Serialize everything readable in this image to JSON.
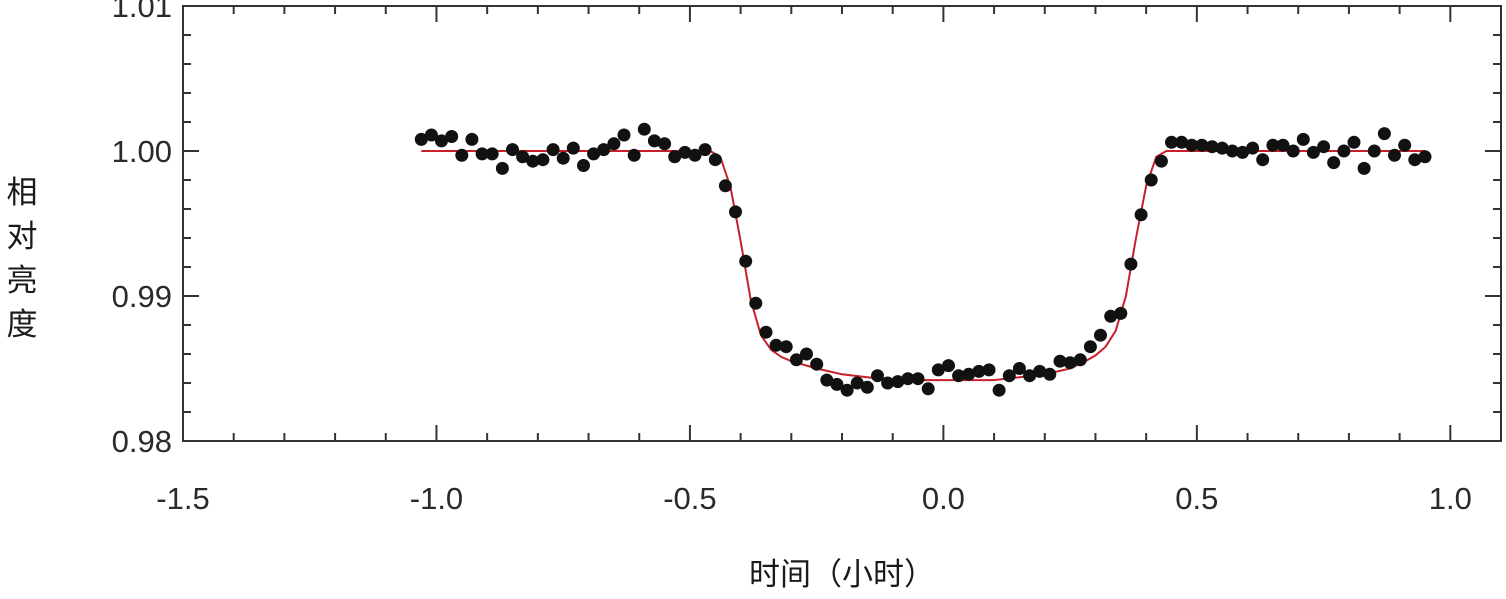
{
  "chart_data": {
    "type": "scatter",
    "xlabel": "时间（小时）",
    "ylabel": "相对亮度",
    "xlim": [
      -1.5,
      1.1
    ],
    "ylim": [
      0.98,
      1.01
    ],
    "x_ticks": [
      -1.5,
      -1.0,
      -0.5,
      0.0,
      0.5,
      1.0
    ],
    "x_tick_labels": [
      "-1.5",
      "-1.0",
      "-0.5",
      "0.0",
      "0.5",
      "1.0"
    ],
    "y_ticks": [
      0.98,
      0.99,
      1.0,
      1.01
    ],
    "y_tick_labels": [
      "0.98",
      "0.99",
      "1.00",
      "1.01"
    ],
    "grid": false,
    "legend": "none",
    "colors": {
      "points": "#111111",
      "model": "#c8202a",
      "axes": "#333333"
    },
    "series": [
      {
        "kind": "points",
        "x": [
          -1.03,
          -1.01,
          -0.99,
          -0.97,
          -0.95,
          -0.93,
          -0.91,
          -0.89,
          -0.87,
          -0.85,
          -0.83,
          -0.81,
          -0.79,
          -0.77,
          -0.75,
          -0.73,
          -0.71,
          -0.69,
          -0.67,
          -0.65,
          -0.63,
          -0.61,
          -0.59,
          -0.57,
          -0.55,
          -0.53,
          -0.51,
          -0.49,
          -0.47,
          -0.45,
          -0.43,
          -0.41,
          -0.39,
          -0.37,
          -0.35,
          -0.33,
          -0.31,
          -0.29,
          -0.27,
          -0.25,
          -0.23,
          -0.21,
          -0.19,
          -0.17,
          -0.15,
          -0.13,
          -0.11,
          -0.09,
          -0.07,
          -0.05,
          -0.03,
          -0.01,
          0.01,
          0.03,
          0.05,
          0.07,
          0.09,
          0.11,
          0.13,
          0.15,
          0.17,
          0.19,
          0.21,
          0.23,
          0.25,
          0.27,
          0.29,
          0.31,
          0.33,
          0.35,
          0.37,
          0.39,
          0.41,
          0.43,
          0.45,
          0.47,
          0.49,
          0.51,
          0.53,
          0.55,
          0.57,
          0.59,
          0.61,
          0.63,
          0.65,
          0.67,
          0.69,
          0.71,
          0.73,
          0.75,
          0.77,
          0.79,
          0.81,
          0.83,
          0.85,
          0.87,
          0.89,
          0.91,
          0.93,
          0.95
        ],
        "y": [
          1.0008,
          1.0011,
          1.0007,
          1.001,
          0.9997,
          1.0008,
          0.9998,
          0.9998,
          0.9988,
          1.0001,
          0.9996,
          0.9993,
          0.9994,
          1.0001,
          0.9995,
          1.0002,
          0.999,
          0.9998,
          1.0001,
          1.0005,
          1.0011,
          0.9997,
          1.0015,
          1.0007,
          1.0005,
          0.9996,
          0.9999,
          0.9997,
          1.0001,
          0.9994,
          0.9976,
          0.9958,
          0.9924,
          0.9895,
          0.9875,
          0.9866,
          0.9865,
          0.9856,
          0.986,
          0.9853,
          0.9842,
          0.9839,
          0.9835,
          0.984,
          0.9837,
          0.9845,
          0.984,
          0.9841,
          0.9843,
          0.9843,
          0.9836,
          0.9849,
          0.9852,
          0.9845,
          0.9846,
          0.9848,
          0.9849,
          0.9835,
          0.9845,
          0.985,
          0.9845,
          0.9848,
          0.9846,
          0.9855,
          0.9854,
          0.9856,
          0.9865,
          0.9873,
          0.9886,
          0.9888,
          0.9922,
          0.9956,
          0.998,
          0.9993,
          1.0006,
          1.0006,
          1.0004,
          1.0004,
          1.0003,
          1.0002,
          1.0,
          0.9999,
          1.0002,
          0.9994,
          1.0004,
          1.0004,
          1.0,
          1.0008,
          0.9999,
          1.0003,
          0.9992,
          1.0,
          1.0006,
          0.9988,
          1.0,
          1.0012,
          0.9997,
          1.0004,
          0.9994,
          0.9996
        ]
      },
      {
        "kind": "model",
        "x": [
          -1.03,
          -0.46,
          -0.44,
          -0.42,
          -0.4,
          -0.38,
          -0.36,
          -0.34,
          -0.32,
          -0.3,
          -0.25,
          -0.2,
          -0.15,
          -0.1,
          0.0,
          0.1,
          0.15,
          0.2,
          0.25,
          0.28,
          0.3,
          0.32,
          0.34,
          0.36,
          0.38,
          0.4,
          0.42,
          0.44,
          0.46,
          0.95
        ],
        "y": [
          1.0,
          1.0,
          0.9996,
          0.9975,
          0.9938,
          0.9897,
          0.9873,
          0.9863,
          0.9858,
          0.9855,
          0.985,
          0.9846,
          0.9844,
          0.9842,
          0.9842,
          0.9842,
          0.9844,
          0.9846,
          0.985,
          0.9855,
          0.9859,
          0.9865,
          0.9876,
          0.99,
          0.994,
          0.9976,
          0.9996,
          1.0,
          1.0,
          1.0
        ]
      }
    ]
  }
}
